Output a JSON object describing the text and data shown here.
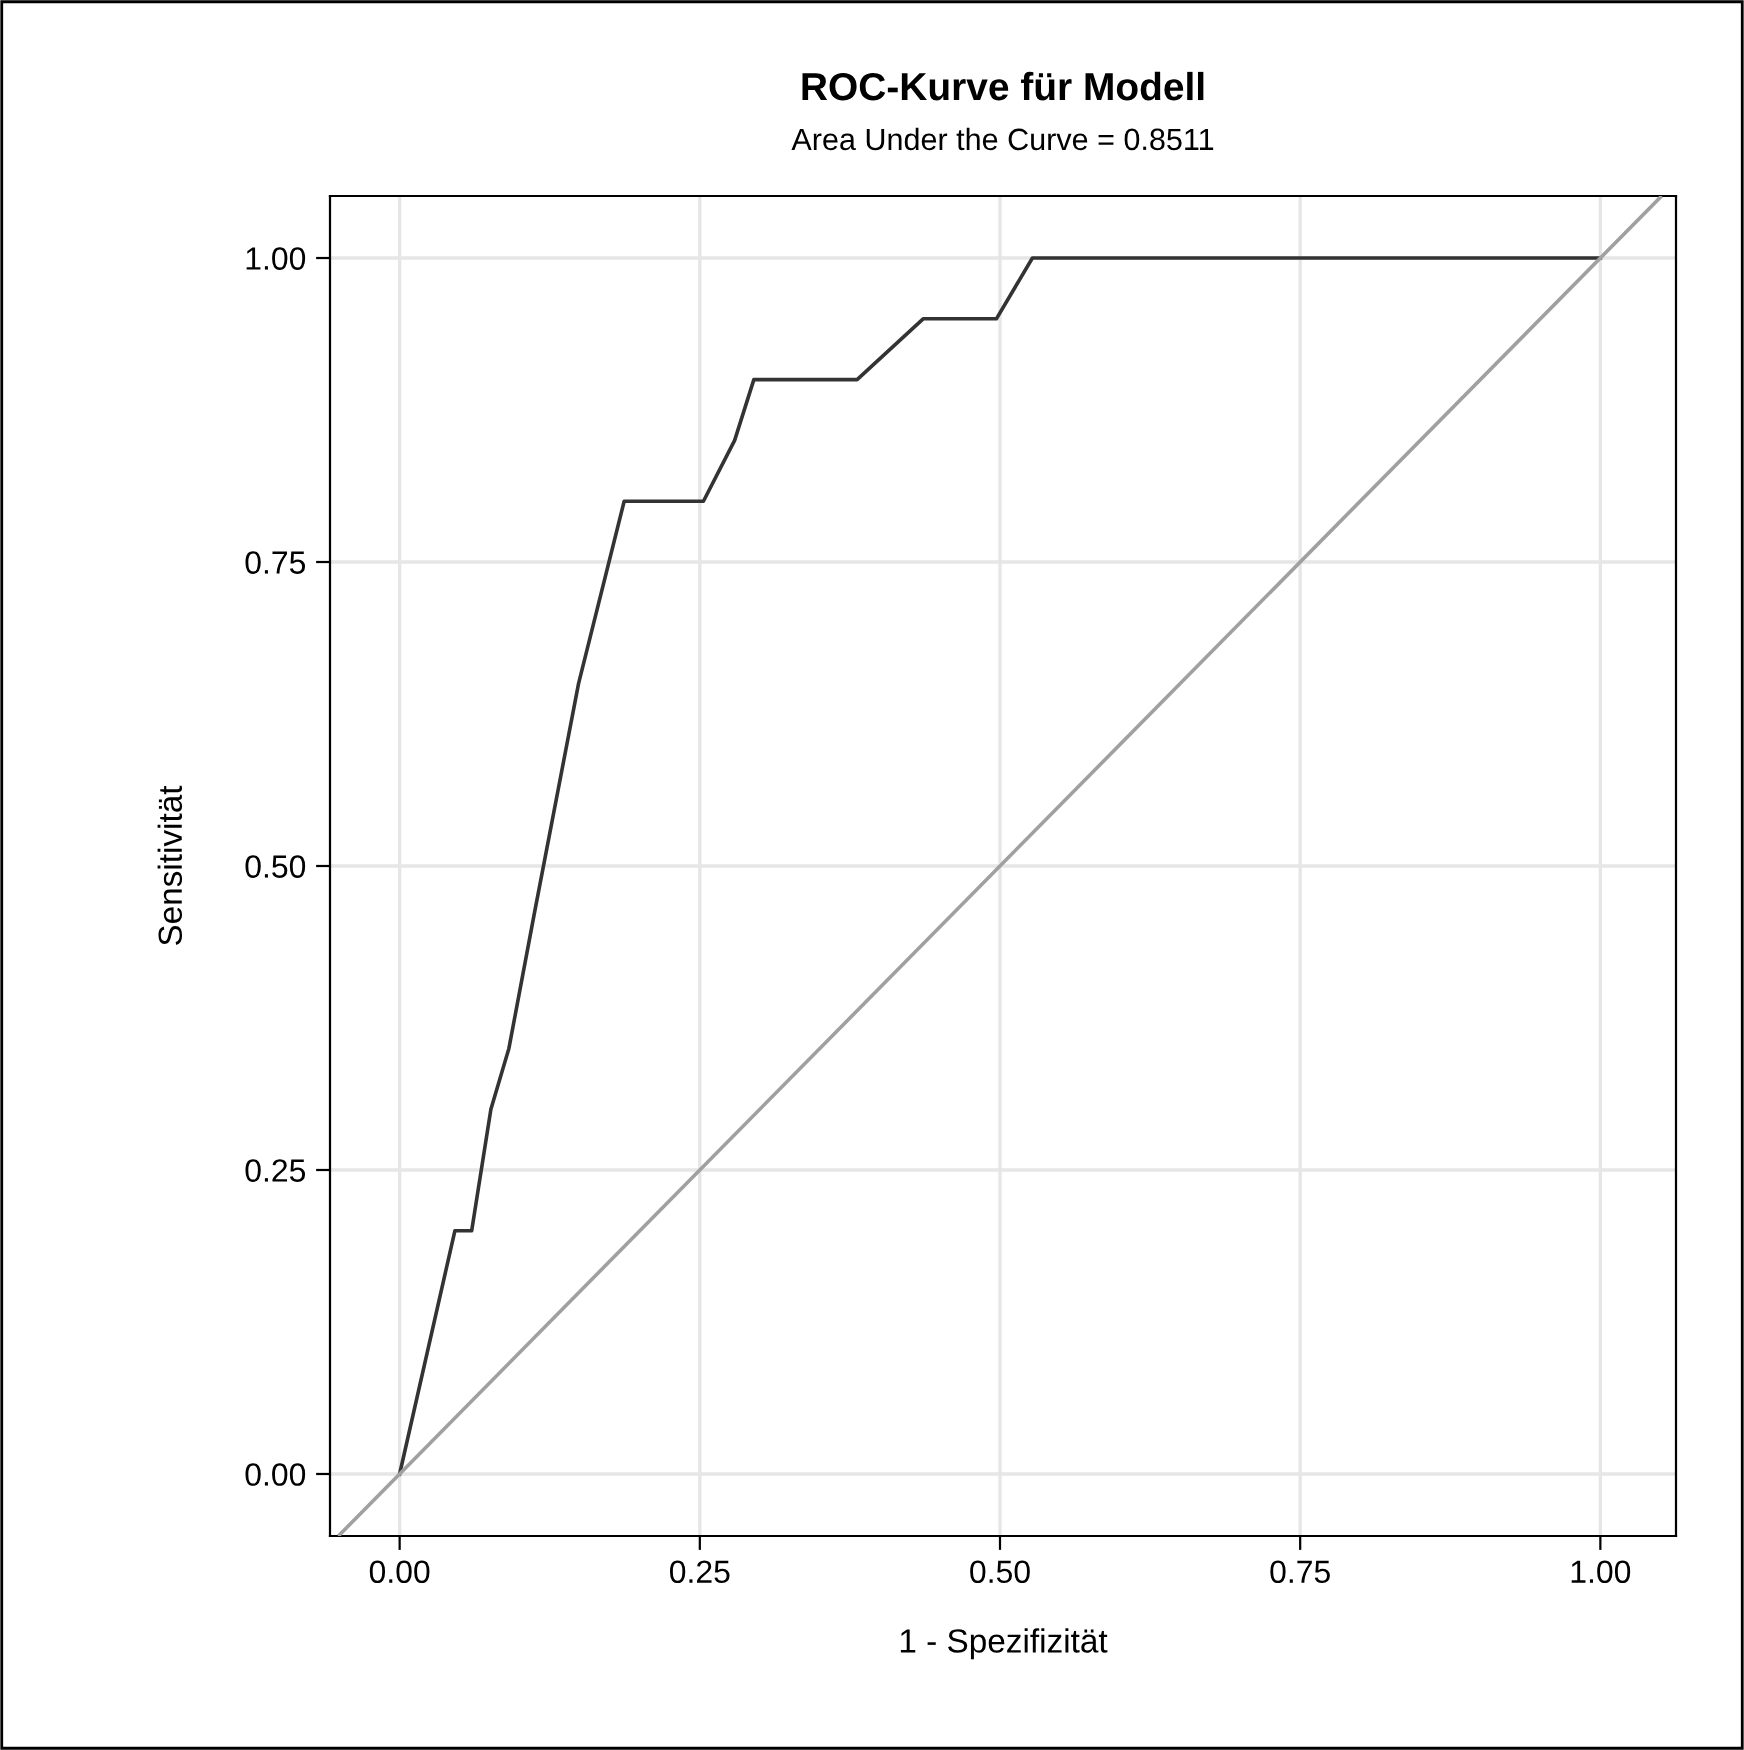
{
  "chart_data": {
    "type": "line",
    "title": "ROC-Kurve für Modell",
    "subtitle": "Area Under the Curve = 0.8511",
    "xlabel": "1 - Spezifizität",
    "ylabel": "Sensitivität",
    "series": [
      {
        "color": "#333333",
        "x": [
          0,
          0.046,
          0.06,
          0.076,
          0.091,
          0.112,
          0.149,
          0.187,
          0.253,
          0.279,
          0.295,
          0.381,
          0.436,
          0.497,
          0.527,
          1.0
        ],
        "values": [
          0,
          0.2,
          0.2,
          0.3,
          0.35,
          0.46,
          0.65,
          0.8,
          0.8,
          0.85,
          0.9,
          0.9,
          0.95,
          0.95,
          1.0,
          1.0
        ]
      },
      {
        "color": "#a0a0a0",
        "x": [
          -0.05,
          1.05
        ],
        "values": [
          -0.05,
          1.05
        ]
      }
    ],
    "xlim": [
      -0.058,
      1.063
    ],
    "ylim": [
      -0.051,
      1.051
    ],
    "xticks": [
      {
        "value": 0,
        "label": "0.00"
      },
      {
        "value": 0.25,
        "label": "0.25"
      },
      {
        "value": 0.5,
        "label": "0.50"
      },
      {
        "value": 0.75,
        "label": "0.75"
      },
      {
        "value": 1,
        "label": "1.00"
      }
    ],
    "yticks": [
      {
        "value": 0,
        "label": "0.00"
      },
      {
        "value": 0.25,
        "label": "0.25"
      },
      {
        "value": 0.5,
        "label": "0.50"
      },
      {
        "value": 0.75,
        "label": "0.75"
      },
      {
        "value": 1,
        "label": "1.00"
      }
    ],
    "grid": true,
    "legend": false
  }
}
